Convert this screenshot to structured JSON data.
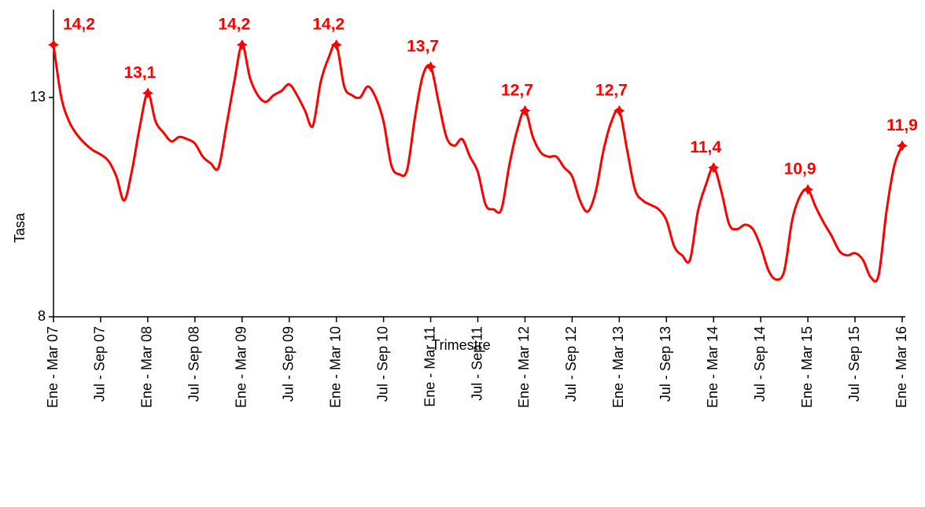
{
  "chart_data": {
    "type": "line",
    "x_label": "Trimestre",
    "y_label": "Tasa",
    "categories": [
      "Ene - Mar 07",
      null,
      null,
      null,
      null,
      null,
      "Jul - Sep 07",
      null,
      null,
      null,
      null,
      null,
      "Ene - Mar 08",
      null,
      null,
      null,
      null,
      null,
      "Jul - Sep 08",
      null,
      null,
      null,
      null,
      null,
      "Ene - Mar 09",
      null,
      null,
      null,
      null,
      null,
      "Jul - Sep 09",
      null,
      null,
      null,
      null,
      null,
      "Ene - Mar 10",
      null,
      null,
      null,
      null,
      null,
      "Jul - Sep 10",
      null,
      null,
      null,
      null,
      null,
      "Ene - Mar 11",
      null,
      null,
      null,
      null,
      null,
      "Jul - Sep 11",
      null,
      null,
      null,
      null,
      null,
      "Ene - Mar 12",
      null,
      null,
      null,
      null,
      null,
      "Jul - Sep 12",
      null,
      null,
      null,
      null,
      null,
      "Ene - Mar 13",
      null,
      null,
      null,
      null,
      null,
      "Jul - Sep 13",
      null,
      null,
      null,
      null,
      null,
      "Ene - Mar 14",
      null,
      null,
      null,
      null,
      null,
      "Jul - Sep 14",
      null,
      null,
      null,
      null,
      null,
      "Ene - Mar 15",
      null,
      null,
      null,
      null,
      null,
      "Jul - Sep 15",
      null,
      null,
      null,
      null,
      null,
      "Ene - Mar 16"
    ],
    "series": [
      {
        "name": "Tasa",
        "color": "#ff0000",
        "values": [
          14.2,
          13.0,
          12.45,
          12.15,
          11.95,
          11.8,
          11.7,
          11.55,
          11.2,
          10.65,
          11.35,
          12.35,
          13.1,
          12.45,
          12.2,
          12.0,
          12.1,
          12.05,
          11.95,
          11.65,
          11.5,
          11.4,
          12.35,
          13.35,
          14.2,
          13.45,
          13.05,
          12.9,
          13.05,
          13.15,
          13.3,
          13.05,
          12.7,
          12.35,
          13.35,
          13.9,
          14.2,
          13.25,
          13.05,
          13.0,
          13.25,
          13.0,
          12.45,
          11.45,
          11.25,
          11.35,
          12.55,
          13.5,
          13.7,
          12.9,
          12.1,
          11.9,
          12.05,
          11.65,
          11.3,
          10.55,
          10.45,
          10.45,
          11.45,
          12.25,
          12.7,
          12.1,
          11.75,
          11.65,
          11.65,
          11.4,
          11.2,
          10.65,
          10.4,
          10.85,
          11.8,
          12.45,
          12.7,
          11.8,
          10.9,
          10.65,
          10.55,
          10.45,
          10.2,
          9.6,
          9.4,
          9.3,
          10.4,
          11.0,
          11.4,
          10.85,
          10.1,
          10.0,
          10.1,
          10.0,
          9.6,
          9.05,
          8.85,
          9.05,
          10.2,
          10.75,
          10.9,
          10.5,
          10.15,
          9.85,
          9.5,
          9.4,
          9.45,
          9.3,
          8.9,
          8.95,
          10.4,
          11.45,
          11.9
        ],
        "value_labels": [
          "14,2",
          null,
          null,
          null,
          null,
          null,
          null,
          null,
          null,
          null,
          null,
          null,
          "13,1",
          null,
          null,
          null,
          null,
          null,
          null,
          null,
          null,
          null,
          null,
          null,
          "14,2",
          null,
          null,
          null,
          null,
          null,
          null,
          null,
          null,
          null,
          null,
          null,
          "14,2",
          null,
          null,
          null,
          null,
          null,
          null,
          null,
          null,
          null,
          null,
          null,
          "13,7",
          null,
          null,
          null,
          null,
          null,
          null,
          null,
          null,
          null,
          null,
          null,
          "12,7",
          null,
          null,
          null,
          null,
          null,
          null,
          null,
          null,
          null,
          null,
          null,
          "12,7",
          null,
          null,
          null,
          null,
          null,
          null,
          null,
          null,
          null,
          null,
          null,
          "11,4",
          null,
          null,
          null,
          null,
          null,
          null,
          null,
          null,
          null,
          null,
          null,
          "10,9",
          null,
          null,
          null,
          null,
          null,
          null,
          null,
          null,
          null,
          null,
          null,
          "11,9"
        ]
      }
    ],
    "ylim": [
      8,
      15
    ],
    "yticks": [
      8,
      13
    ]
  }
}
